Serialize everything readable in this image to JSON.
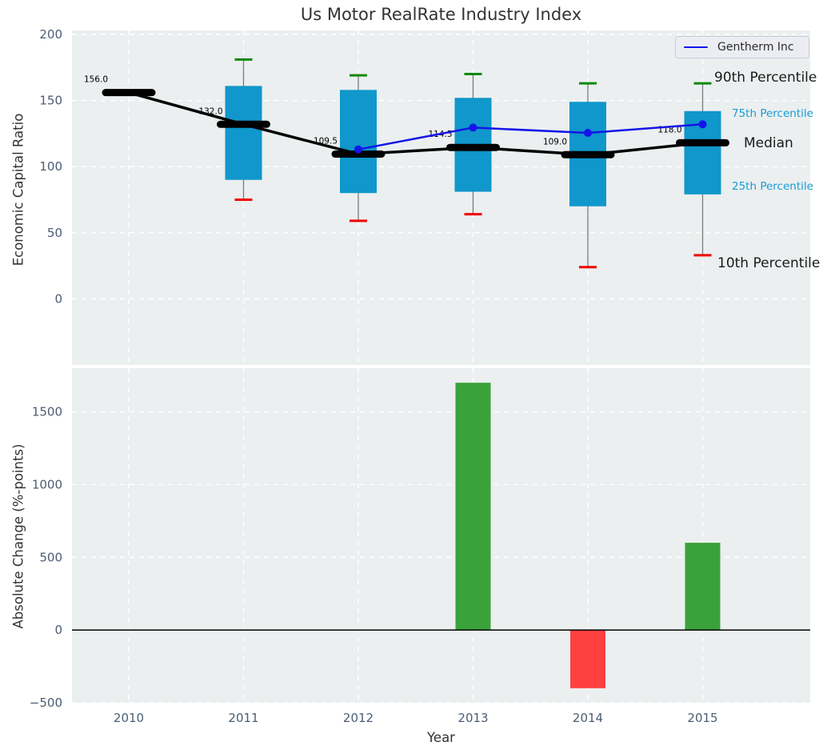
{
  "figure": {
    "title": "Us Motor RealRate Industry Index",
    "legend": {
      "label": "Gentherm Inc"
    },
    "annotations": {
      "p90": "90th Percentile",
      "p75": "75th Percentile",
      "median": "Median",
      "p25": "25th Percentile",
      "p10": "10th Percentile"
    }
  },
  "chart_data": [
    {
      "type": "box",
      "title": "Us Motor RealRate Industry Index",
      "ylabel": "Economic Capital Ratio",
      "ylim": [
        -50,
        203
      ],
      "yticks": [
        0,
        50,
        100,
        150,
        200
      ],
      "yticklabels": [
        "0",
        "50",
        "100",
        "150",
        "200"
      ],
      "grid": true,
      "legend_position": "upper right",
      "categories": [
        2010,
        2011,
        2012,
        2013,
        2014,
        2015
      ],
      "boxes": [
        {
          "year": 2010,
          "p10": null,
          "p25": null,
          "median": 156.0,
          "p75": null,
          "p90": null
        },
        {
          "year": 2011,
          "p10": 75,
          "p25": 90,
          "median": 132.0,
          "p75": 161,
          "p90": 181
        },
        {
          "year": 2012,
          "p10": 59,
          "p25": 80,
          "median": 109.5,
          "p75": 158,
          "p90": 169
        },
        {
          "year": 2013,
          "p10": 64,
          "p25": 81,
          "median": 114.5,
          "p75": 152,
          "p90": 170
        },
        {
          "year": 2014,
          "p10": 24,
          "p25": 70,
          "median": 109.0,
          "p75": 149,
          "p90": 163
        },
        {
          "year": 2015,
          "p10": 33,
          "p25": 79,
          "median": 118.0,
          "p75": 142,
          "p90": 163
        }
      ],
      "median_labels": [
        "156.0",
        "132.0",
        "109.5",
        "114.5",
        "109.0",
        "118.0"
      ],
      "series": [
        {
          "name": "Gentherm Inc",
          "x": [
            2012,
            2013,
            2014,
            2015
          ],
          "values": [
            113,
            129.5,
            125.5,
            132
          ]
        }
      ],
      "colors": {
        "box": "#1097cb",
        "whisker": "#7a7a7a",
        "p90_cap": "#0b8a0b",
        "p10_cap": "#ee0000",
        "median": "#000000",
        "gentherm": "#1414e8",
        "annotation_small": "#1a9cd3",
        "plot_bg": "#ebeff0",
        "grid": "#ffffff",
        "tick": "#4c5c74"
      }
    },
    {
      "type": "bar",
      "xlabel": "Year",
      "ylabel": "Absolute Change (%-points)",
      "ylim": [
        -500,
        1800
      ],
      "yticks": [
        -500,
        0,
        500,
        1000,
        1500
      ],
      "yticklabels": [
        "−500",
        "0",
        "500",
        "1000",
        "1500"
      ],
      "grid": true,
      "categories": [
        2010,
        2011,
        2012,
        2013,
        2014,
        2015
      ],
      "values": [
        0,
        0,
        0,
        1700,
        -400,
        600
      ],
      "positive_color": "#3aa23a",
      "negative_color": "#ff4040",
      "zero_line_color": "#000000"
    }
  ]
}
